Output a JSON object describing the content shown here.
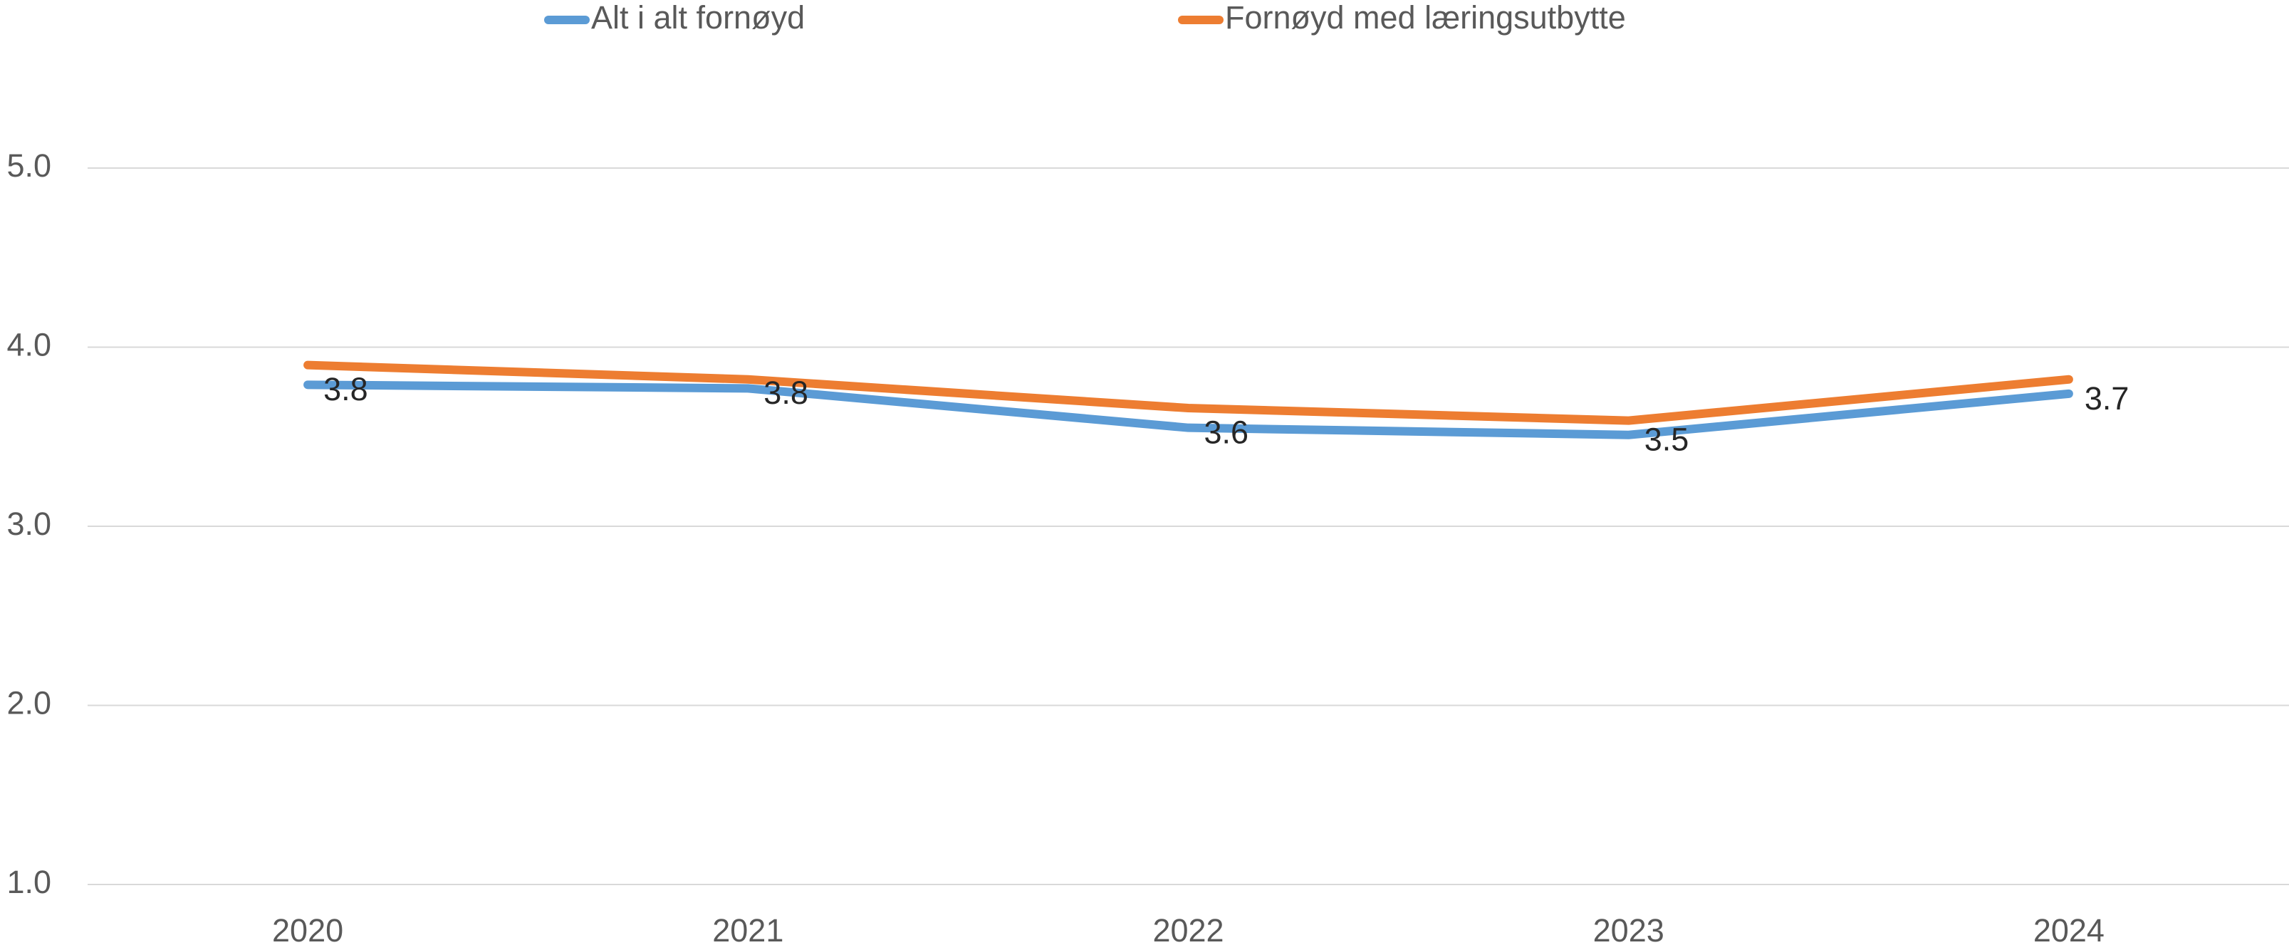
{
  "chart_data": {
    "type": "line",
    "categories": [
      "2020",
      "2021",
      "2022",
      "2023",
      "2024"
    ],
    "series": [
      {
        "name": "Alt i alt fornøyd",
        "color": "#5b9bd5",
        "values": [
          3.79,
          3.77,
          3.55,
          3.51,
          3.74
        ],
        "value_labels": [
          "3.8",
          "3.8",
          "3.6",
          "3.5",
          "3.7"
        ]
      },
      {
        "name": "Fornøyd med læringsutbytte",
        "color": "#ed7d31",
        "values": [
          3.9,
          3.82,
          3.66,
          3.59,
          3.82
        ]
      }
    ],
    "ylim": [
      1,
      5
    ],
    "yticks": [
      {
        "value": 1,
        "label": "1.0"
      },
      {
        "value": 2,
        "label": "2.0"
      },
      {
        "value": 3,
        "label": "3.0"
      },
      {
        "value": 4,
        "label": "4.0"
      },
      {
        "value": 5,
        "label": "5.0"
      }
    ],
    "grid": true,
    "legend": "top"
  }
}
